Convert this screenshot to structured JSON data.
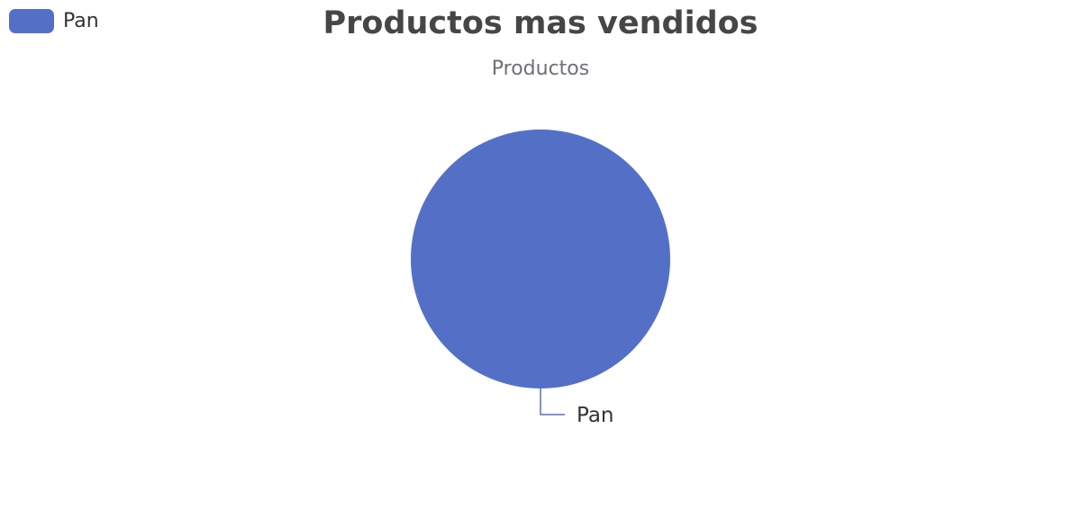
{
  "chart_data": {
    "type": "pie",
    "title": "Productos mas vendidos",
    "subtitle": "Productos",
    "legend": {
      "placement": "top-left",
      "entries": [
        "Pan"
      ]
    },
    "slices": [
      {
        "name": "Pan",
        "value": 1,
        "color": "#5470c6"
      }
    ]
  }
}
